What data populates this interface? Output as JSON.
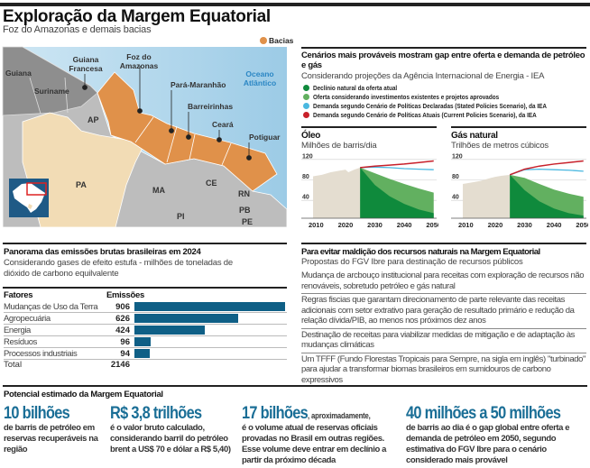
{
  "header": {
    "title": "Exploração da Margem Equatorial",
    "subtitle": "Foz do Amazonas e demais bacias"
  },
  "map": {
    "legend": "Bacias",
    "colors": {
      "basin": "#e0914a",
      "ocean": "#a9d3ea",
      "land": "#bdbdbd",
      "guianas": "#8e8e8e",
      "para": "#f2dcb5"
    },
    "countries": [
      "Guiana",
      "Suriname"
    ],
    "guiana_francesa": "Guiana Francesa",
    "basins": [
      "Foz do Amazonas",
      "Pará-Maranhão",
      "Barreirinhas",
      "Ceará",
      "Potiguar"
    ],
    "ocean": "Oceano Atlântico",
    "states": [
      "AP",
      "PA",
      "MA",
      "CE",
      "RN",
      "PB",
      "PE",
      "PI"
    ]
  },
  "scenarios": {
    "title": "Cenários mais prováveis mostram gap entre oferta e demanda de petróleo e gás",
    "subtitle": "Considerando projeções da Agência Internacional de Energia - IEA",
    "legend": [
      {
        "label": "Declínio natural da oferta atual",
        "color": "#0f8a3c"
      },
      {
        "label": "Oferta considerando investimentos existentes e projetos aprovados",
        "color": "#62b060"
      },
      {
        "label": "Demanda segundo Cenário de Políticas Declaradas (Stated Policies Scenario), da IEA",
        "color": "#4ab8e0"
      },
      {
        "label": "Demanda segundo Cenário de Políticas Atuais (Current Policies Scenario), da IEA",
        "color": "#c8202a"
      }
    ]
  },
  "emissions": {
    "title": "Panorama das emissões brutas brasileiras em 2024",
    "subtitle": "Considerando gases de efeito estufa - milhões de toneladas de dióxido de carbono equilvalente",
    "col_factors": "Fatores",
    "col_emissions": "Emissões",
    "total_label": "Total",
    "total_value": "2146"
  },
  "proposals": {
    "title": "Para evitar maldição dos recursos naturais na Margem Equatorial",
    "subtitle": "Propostas do FGV Ibre para destinação de recursos públicos",
    "items": [
      "Mudança de arcbouço institucional para receitas com exploração de recursos não renováveis, sobretudo petróleo e gás natural",
      "Regras fiscias que garantam direcionamento de parte relevante das receitas adicionais com setor extrativo para geração de resultado primário e redução da relação dívida/PIB, ao menos nos próximos dez anos",
      "Destinação de receitas para viabilizar medidas de mitigação e de adaptação às mudanças climáticas",
      "Um TFFF  (Fundo Florestas Tropicais para Sempre, na sigla em inglês) \"turbinado\" para ajudar a transformar biomas brasileiros em sumidouros de carbono expressivos"
    ]
  },
  "potential": {
    "title": "Potencial estimado da Margem Equatorial",
    "items": [
      {
        "big": "10 bilhões",
        "suffix": "",
        "text": "de barris de petróleo em reservas recuperáveis na região"
      },
      {
        "big": "R$ 3,8 trilhões",
        "suffix": "",
        "text": "é o valor bruto calculado, considerando barril do petróleo brent a US$ 70 e dólar a R$ 5,40)"
      },
      {
        "big": "17 bilhões",
        "suffix": ", aproximadamente,",
        "text": "é o volume atual de reservas oficiais provadas no Brasil em outras regiões. Esse volume deve entrar em declínio a partir da próximo década"
      },
      {
        "big": "40 milhões a 50 milhões",
        "suffix": "",
        "text": "de barris ao dia é o gap global entre oferta e demanda de petróleo em 2050, segundo estimativa do  FGV Ibre para o cenário considerado mais provável"
      }
    ]
  },
  "chart_data": [
    {
      "type": "bar",
      "title": "Panorama das emissões brutas brasileiras em 2024",
      "categories": [
        "Mudanças de Uso da Terra",
        "Agropecuária",
        "Energia",
        "Resíduos",
        "Processos industriais"
      ],
      "values": [
        906,
        626,
        424,
        96,
        94
      ],
      "color": "#0f5f86"
    },
    {
      "type": "area",
      "title": "Óleo",
      "subtitle": "Milhões de barris/dia",
      "xticks": [
        2010,
        2020,
        2030,
        2040,
        2050
      ],
      "yticks": [
        40,
        80,
        120
      ],
      "xlim": [
        2005,
        2051
      ],
      "ylim": [
        5,
        125
      ],
      "history": {
        "x": [
          2009,
          2012,
          2015,
          2018,
          2020,
          2021,
          2023,
          2025
        ],
        "y": [
          87,
          90,
          95,
          98,
          100,
          95,
          100,
          104
        ]
      },
      "series": [
        {
          "key": "decline",
          "x": [
            2025,
            2030,
            2035,
            2040,
            2045,
            2050
          ],
          "y": [
            104,
            70,
            48,
            33,
            22,
            15
          ]
        },
        {
          "key": "supply",
          "x": [
            2025,
            2030,
            2035,
            2040,
            2045,
            2050
          ],
          "y": [
            104,
            93,
            82,
            72,
            63,
            55
          ]
        },
        {
          "key": "stated",
          "x": [
            2025,
            2030,
            2035,
            2040,
            2045,
            2050
          ],
          "y": [
            104,
            105,
            104,
            102,
            101,
            100
          ]
        },
        {
          "key": "current",
          "x": [
            2025,
            2030,
            2035,
            2040,
            2045,
            2050
          ],
          "y": [
            104,
            107,
            109,
            111,
            114,
            117
          ]
        }
      ]
    },
    {
      "type": "area",
      "title": "Gás natural",
      "subtitle": "Trilhões de metros cúbicos",
      "xticks": [
        2010,
        2020,
        2030,
        2040,
        2050
      ],
      "yticks": [
        40,
        80,
        120
      ],
      "xlim": [
        2005,
        2051
      ],
      "ylim": [
        5,
        125
      ],
      "history": {
        "x": [
          2009,
          2012,
          2015,
          2018,
          2020,
          2022,
          2025
        ],
        "y": [
          72,
          75,
          78,
          83,
          86,
          88,
          90
        ]
      },
      "series": [
        {
          "key": "decline",
          "x": [
            2025,
            2030,
            2035,
            2040,
            2045,
            2050
          ],
          "y": [
            90,
            60,
            38,
            24,
            15,
            10
          ]
        },
        {
          "key": "supply",
          "x": [
            2025,
            2030,
            2035,
            2040,
            2045,
            2050
          ],
          "y": [
            90,
            84,
            72,
            61,
            53,
            47
          ]
        },
        {
          "key": "stated",
          "x": [
            2025,
            2030,
            2035,
            2040,
            2045,
            2050
          ],
          "y": [
            90,
            100,
            101,
            100,
            99,
            97
          ]
        },
        {
          "key": "current",
          "x": [
            2025,
            2030,
            2035,
            2040,
            2045,
            2050
          ],
          "y": [
            90,
            101,
            107,
            111,
            114,
            117
          ]
        }
      ]
    }
  ]
}
